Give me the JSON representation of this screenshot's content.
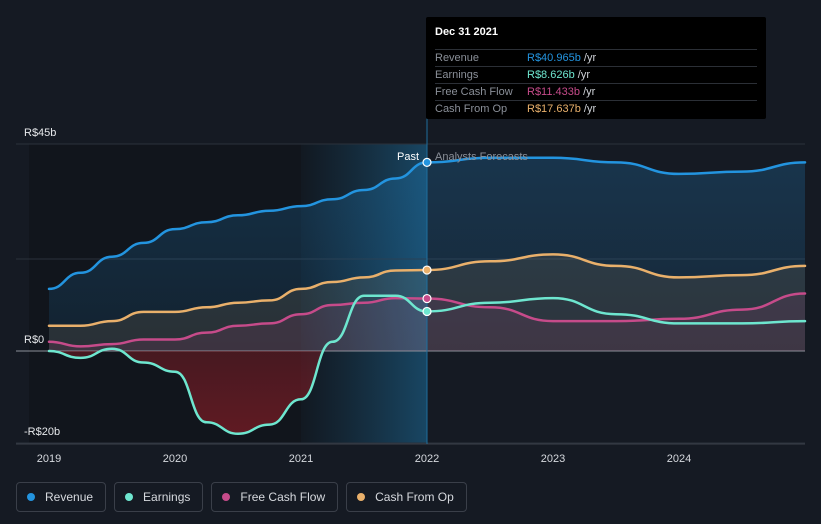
{
  "colors": {
    "background": "#151a23",
    "revenue": "#2394df",
    "earnings": "#6ee6cf",
    "fcf": "#c64b8a",
    "cfo": "#e9b06b",
    "past_region": "#1d6f9c"
  },
  "tooltip": {
    "date": "Dec 31 2021",
    "rows": [
      {
        "label": "Revenue",
        "value": "R$40.965b",
        "unit": " /yr",
        "color": "#2394df"
      },
      {
        "label": "Earnings",
        "value": "R$8.626b",
        "unit": " /yr",
        "color": "#6ee6cf"
      },
      {
        "label": "Free Cash Flow",
        "value": "R$11.433b",
        "unit": " /yr",
        "color": "#c64b8a"
      },
      {
        "label": "Cash From Op",
        "value": "R$17.637b",
        "unit": " /yr",
        "color": "#e9b06b"
      }
    ]
  },
  "legend": [
    {
      "label": "Revenue",
      "color": "#2394df",
      "icon": "revenue-dot-icon"
    },
    {
      "label": "Earnings",
      "color": "#6ee6cf",
      "icon": "earnings-dot-icon"
    },
    {
      "label": "Free Cash Flow",
      "color": "#c64b8a",
      "icon": "fcf-dot-icon"
    },
    {
      "label": "Cash From Op",
      "color": "#e9b06b",
      "icon": "cfo-dot-icon"
    }
  ],
  "chart_data": {
    "type": "area",
    "y_tick_labels": [
      "R$45b",
      "R$0",
      "-R$20b"
    ],
    "y_ticks": [
      45,
      0,
      -20
    ],
    "ylim": [
      -20,
      45
    ],
    "x_tick_labels": [
      "2019",
      "2020",
      "2021",
      "2022",
      "2023",
      "2024"
    ],
    "x_ticks": [
      2019,
      2020,
      2021,
      2022,
      2023,
      2024
    ],
    "xlim": [
      2019,
      2025
    ],
    "divider_x": 2022,
    "past_label": "Past",
    "forecast_label": "Analysts Forecasts",
    "grid": true,
    "legend_position": "bottom-left",
    "series": [
      {
        "name": "Revenue",
        "key": "revenue",
        "x": [
          2019.0,
          2019.25,
          2019.5,
          2019.75,
          2020.0,
          2020.25,
          2020.5,
          2020.75,
          2021.0,
          2021.25,
          2021.5,
          2021.75,
          2022.0,
          2022.5,
          2023.0,
          2023.5,
          2024.0,
          2024.5,
          2025.0
        ],
        "y": [
          13.5,
          17.0,
          20.5,
          23.5,
          26.5,
          28.0,
          29.5,
          30.5,
          31.5,
          33.0,
          35.0,
          37.5,
          41.0,
          42.0,
          42.0,
          41.0,
          38.5,
          39.0,
          41.0
        ]
      },
      {
        "name": "Earnings",
        "key": "earnings",
        "x": [
          2019.0,
          2019.25,
          2019.5,
          2019.75,
          2020.0,
          2020.25,
          2020.5,
          2020.75,
          2021.0,
          2021.25,
          2021.5,
          2021.75,
          2022.0,
          2022.5,
          2023.0,
          2023.5,
          2024.0,
          2024.5,
          2025.0
        ],
        "y": [
          0.0,
          -1.5,
          0.5,
          -2.5,
          -4.5,
          -15.5,
          -18.0,
          -16.0,
          -10.5,
          2.0,
          12.0,
          12.0,
          8.6,
          10.5,
          11.5,
          8.0,
          6.0,
          6.0,
          6.5
        ]
      },
      {
        "name": "Free Cash Flow",
        "key": "fcf",
        "x": [
          2019.0,
          2019.25,
          2019.5,
          2019.75,
          2020.0,
          2020.25,
          2020.5,
          2020.75,
          2021.0,
          2021.25,
          2021.5,
          2021.75,
          2022.0,
          2022.5,
          2023.0,
          2023.5,
          2024.0,
          2024.5,
          2025.0
        ],
        "y": [
          2.0,
          1.0,
          1.5,
          2.5,
          2.5,
          4.0,
          5.5,
          6.0,
          8.0,
          10.0,
          10.5,
          11.5,
          11.4,
          9.5,
          6.5,
          6.5,
          7.0,
          9.0,
          12.5
        ]
      },
      {
        "name": "Cash From Op",
        "key": "cfo",
        "x": [
          2019.0,
          2019.25,
          2019.5,
          2019.75,
          2020.0,
          2020.25,
          2020.5,
          2020.75,
          2021.0,
          2021.25,
          2021.5,
          2021.75,
          2022.0,
          2022.5,
          2023.0,
          2023.5,
          2024.0,
          2024.5,
          2025.0
        ],
        "y": [
          5.5,
          5.5,
          6.5,
          8.5,
          8.5,
          9.5,
          10.5,
          11.0,
          13.5,
          15.0,
          16.0,
          17.5,
          17.6,
          19.5,
          21.0,
          18.5,
          16.0,
          16.5,
          18.5
        ]
      }
    ]
  }
}
